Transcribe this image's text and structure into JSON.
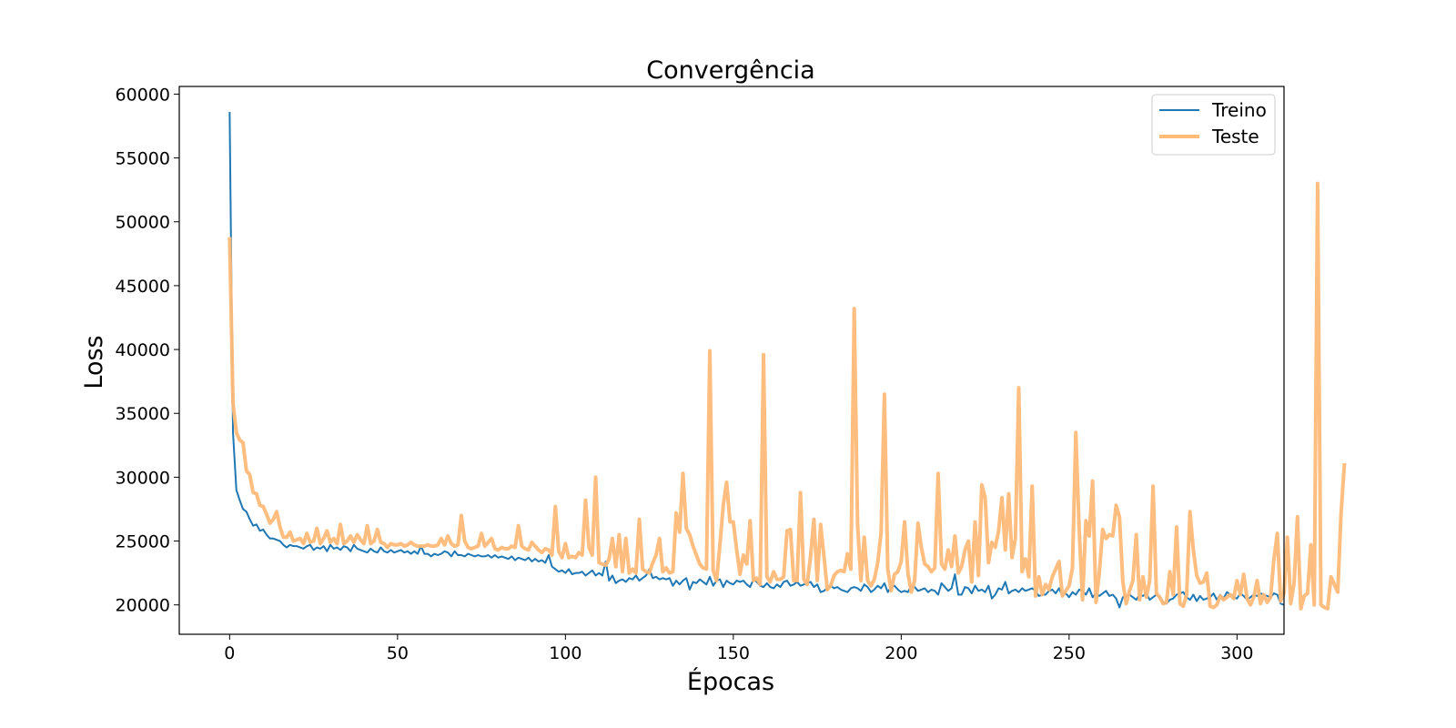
{
  "chart_data": {
    "type": "line",
    "title": "Convergência",
    "xlabel": "Épocas",
    "ylabel": "Loss",
    "xlim": [
      -15,
      314
    ],
    "ylim": [
      17700,
      60600
    ],
    "xticks": [
      0,
      50,
      100,
      150,
      200,
      250,
      300
    ],
    "yticks": [
      20000,
      25000,
      30000,
      35000,
      40000,
      45000,
      50000,
      55000,
      60000
    ],
    "grid": false,
    "legend_position": "top-right",
    "series": [
      {
        "name": "Treino",
        "color": "#1f77b4",
        "x_start": 0,
        "x_step": 1,
        "values": [
          58600,
          33500,
          29000,
          28200,
          27500,
          27300,
          26700,
          26200,
          26300,
          25800,
          25900,
          25500,
          25200,
          25200,
          25100,
          25000,
          24700,
          24500,
          24700,
          24600,
          24600,
          24500,
          24400,
          24600,
          24700,
          24300,
          24500,
          24400,
          24600,
          24200,
          24700,
          24400,
          24500,
          24300,
          24600,
          24500,
          24200,
          24700,
          24400,
          24300,
          24200,
          24100,
          24400,
          24200,
          24100,
          24500,
          24200,
          24100,
          24300,
          24100,
          24200,
          24300,
          24100,
          24200,
          24000,
          24200,
          24000,
          24600,
          24000,
          24000,
          23800,
          24000,
          23900,
          24000,
          24200,
          24100,
          23800,
          24200,
          23900,
          23900,
          23800,
          24000,
          23900,
          23800,
          23900,
          23800,
          23800,
          23900,
          23700,
          23900,
          23700,
          23800,
          23700,
          23600,
          23800,
          23500,
          23700,
          23600,
          23500,
          23700,
          23400,
          23600,
          23400,
          23500,
          23300,
          23900,
          23000,
          22800,
          22600,
          22700,
          22500,
          22800,
          22400,
          22500,
          22500,
          22600,
          22300,
          22500,
          22700,
          22300,
          22500,
          22300,
          23400,
          21900,
          22300,
          21700,
          21900,
          22000,
          21800,
          22100,
          22000,
          22300,
          21900,
          22100,
          22300,
          22800,
          22100,
          22200,
          22000,
          22100,
          22000,
          22100,
          21500,
          21900,
          21600,
          21900,
          22100,
          21200,
          21800,
          21700,
          22000,
          21800,
          21600,
          22200,
          21500,
          21900,
          22000,
          21400,
          21900,
          21700,
          21600,
          21900,
          21800,
          21900,
          21600,
          21400,
          22000,
          21800,
          21500,
          21400,
          21700,
          21400,
          21300,
          21600,
          21400,
          21800,
          21900,
          21500,
          21600,
          21800,
          21500,
          21600,
          21700,
          21800,
          21400,
          21600,
          21000,
          21100,
          21300,
          21500,
          21300,
          21400,
          21200,
          21100,
          21000,
          21300,
          21400,
          21300,
          21100,
          21600,
          21400,
          21000,
          21200,
          21500,
          21300,
          21700,
          21000,
          21400,
          21500,
          21200,
          21000,
          21100,
          21000,
          21500,
          21400,
          21100,
          21200,
          21300,
          21000,
          21200,
          21100,
          20800,
          21700,
          21400,
          21100,
          21300,
          22400,
          20800,
          20800,
          21400,
          21300,
          20900,
          21500,
          21100,
          21200,
          21000,
          21500,
          20500,
          20800,
          21300,
          21200,
          21800,
          20900,
          21100,
          21200,
          21000,
          21300,
          21100,
          21200,
          21300,
          21100,
          20700,
          20800,
          20800,
          21100,
          21200,
          20900,
          21300,
          20700,
          20900,
          20600,
          21000,
          20800,
          21200,
          21100,
          20800,
          21300,
          20600,
          20900,
          20700,
          20900,
          21100,
          20700,
          20800,
          20500,
          19800,
          20600,
          20700,
          20800,
          20600,
          20400,
          20800,
          20700,
          20900,
          20400,
          20600,
          20800,
          20600,
          20200,
          20100,
          20400,
          20500,
          20800,
          20900,
          21000,
          20600,
          20400,
          20800,
          20300,
          20700,
          20400,
          20500,
          20600,
          20900,
          20400,
          20800,
          20500,
          21000,
          20800,
          20600,
          20500,
          20900,
          20700,
          20400,
          20600,
          20800,
          20700,
          20900,
          20800,
          20700,
          20600,
          20900,
          20800,
          20100,
          20000
        ]
      },
      {
        "name": "Teste",
        "color": "#ffbb78",
        "x_start": 0,
        "x_step": 1,
        "values": [
          48800,
          35800,
          33500,
          32900,
          32700,
          30500,
          30200,
          28800,
          28700,
          27800,
          27700,
          27100,
          26400,
          26700,
          27300,
          26100,
          25300,
          25300,
          25700,
          25000,
          25100,
          25200,
          24800,
          25600,
          24900,
          25000,
          26000,
          24800,
          25200,
          25800,
          24900,
          25200,
          24800,
          26300,
          24800,
          25000,
          25400,
          24900,
          25500,
          25100,
          24800,
          26200,
          24800,
          25000,
          25900,
          24900,
          24800,
          24500,
          24800,
          24700,
          24700,
          24800,
          24600,
          24700,
          24900,
          24700,
          24600,
          24600,
          24600,
          24700,
          24600,
          24600,
          24700,
          25200,
          24700,
          25400,
          24800,
          24600,
          24700,
          27000,
          25000,
          24500,
          24400,
          24500,
          24600,
          25600,
          24600,
          24900,
          25200,
          24400,
          24300,
          24500,
          24400,
          24400,
          24600,
          24500,
          26200,
          24600,
          24400,
          24300,
          24900,
          24600,
          24300,
          24100,
          24400,
          24300,
          23900,
          27700,
          24200,
          23700,
          24800,
          23700,
          23800,
          23700,
          24100,
          23900,
          28200,
          24500,
          23900,
          30000,
          23300,
          23200,
          23100,
          23600,
          25200,
          23000,
          25500,
          22600,
          25200,
          22500,
          22800,
          22500,
          26700,
          22800,
          22600,
          22500,
          23300,
          23900,
          25200,
          22600,
          22900,
          22500,
          22600,
          27200,
          25700,
          30300,
          26000,
          25500,
          24600,
          23900,
          23200,
          22900,
          22800,
          39900,
          22700,
          21900,
          24700,
          27800,
          29600,
          26500,
          26500,
          24300,
          22400,
          23900,
          23200,
          26600,
          21900,
          22100,
          21600,
          39600,
          22200,
          21800,
          22600,
          22000,
          22000,
          22200,
          25800,
          25900,
          21900,
          21900,
          28800,
          22000,
          21600,
          23800,
          26700,
          21900,
          26300,
          23800,
          21200,
          21500,
          22300,
          22600,
          22700,
          22600,
          24000,
          22800,
          43200,
          26300,
          21900,
          25300,
          21900,
          21500,
          22000,
          23300,
          25600,
          36500,
          22800,
          21100,
          22400,
          22600,
          23400,
          26500,
          22500,
          21000,
          21900,
          26400,
          24500,
          23200,
          23000,
          22600,
          22900,
          30300,
          23200,
          22800,
          24300,
          23000,
          25400,
          22500,
          23000,
          24300,
          25000,
          21800,
          26500,
          22300,
          29400,
          28400,
          23300,
          24900,
          24500,
          25800,
          28400,
          24300,
          28700,
          23700,
          25200,
          37000,
          22600,
          23600,
          22200,
          29300,
          20700,
          22200,
          20800,
          21600,
          21200,
          22200,
          22800,
          23400,
          20700,
          21100,
          21500,
          22900,
          33500,
          25900,
          20400,
          26600,
          25400,
          29700,
          20200,
          22500,
          25900,
          25200,
          25500,
          25400,
          27800,
          26900,
          21800,
          20100,
          21100,
          21900,
          25500,
          20400,
          22200,
          20600,
          21900,
          29300,
          20900,
          20600,
          20100,
          20200,
          22600,
          20800,
          26100,
          20100,
          19900,
          20800,
          27300,
          24300,
          22300,
          21700,
          21800,
          22500,
          19900,
          19800,
          20000,
          20700,
          20400,
          20600,
          20800,
          20500,
          21900,
          20800,
          22400,
          20500,
          20000,
          20600,
          21900,
          20100,
          20800,
          20200,
          20600,
          23600,
          25600,
          20300,
          20900,
          25300,
          20100,
          21700,
          26900,
          19700,
          20700,
          20900,
          24700,
          20000,
          53000,
          20000,
          19800,
          19700,
          22200,
          21600,
          21000,
          27200,
          31100
        ]
      }
    ]
  }
}
